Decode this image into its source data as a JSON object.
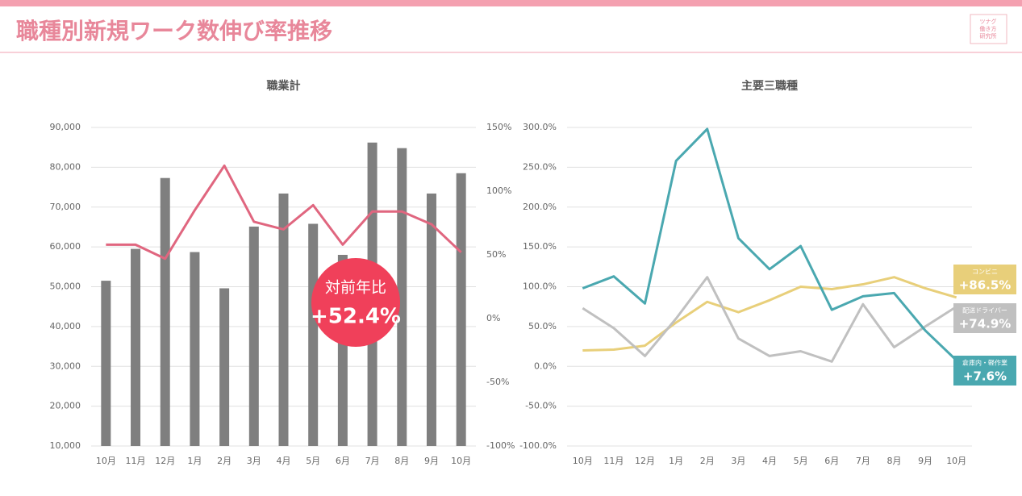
{
  "header": {
    "title": "職種別新規ワーク数伸び率推移",
    "logo": [
      "ツナグ",
      "働き方",
      "研究所"
    ]
  },
  "chart_data": [
    {
      "type": "bar",
      "title": "職業計",
      "categories": [
        "10月",
        "11月",
        "12月",
        "1月",
        "2月",
        "3月",
        "4月",
        "5月",
        "6月",
        "7月",
        "8月",
        "9月",
        "10月"
      ],
      "ylim": [
        10000,
        90000
      ],
      "yticks": [
        {
          "value": 10000,
          "label": "10,000"
        },
        {
          "value": 20000,
          "label": "20,000"
        },
        {
          "value": 30000,
          "label": "30,000"
        },
        {
          "value": 40000,
          "label": "40,000"
        },
        {
          "value": 50000,
          "label": "50,000"
        },
        {
          "value": 60000,
          "label": "60,000"
        },
        {
          "value": 70000,
          "label": "70,000"
        },
        {
          "value": 80000,
          "label": "80,000"
        },
        {
          "value": 90000,
          "label": "90,000"
        }
      ],
      "y2lim": [
        -100,
        150
      ],
      "y2ticks": [
        {
          "value": -100,
          "label": "-100%"
        },
        {
          "value": -50,
          "label": "-50%"
        },
        {
          "value": 0,
          "label": "0%"
        },
        {
          "value": 50,
          "label": "50%"
        },
        {
          "value": 100,
          "label": "100%"
        },
        {
          "value": 150,
          "label": "150%"
        }
      ],
      "grid": true,
      "series": [
        {
          "type": "bar",
          "color": "#7f7f7f",
          "values": [
            51500,
            59500,
            77300,
            58700,
            49600,
            65100,
            73400,
            65800,
            58000,
            86200,
            84800,
            73400,
            78500
          ]
        },
        {
          "type": "line",
          "axis": "y2",
          "color": "#e0667f",
          "values": [
            58,
            58,
            47,
            85,
            120,
            76,
            70,
            89,
            58,
            84,
            84,
            74,
            52
          ]
        }
      ],
      "annotation": {
        "label": "対前年比",
        "value": "+52.4%",
        "color": "#f0405a"
      }
    },
    {
      "type": "line",
      "title": "主要三職種",
      "categories": [
        "10月",
        "11月",
        "12月",
        "1月",
        "2月",
        "3月",
        "4月",
        "5月",
        "6月",
        "7月",
        "8月",
        "9月",
        "10月"
      ],
      "ylim": [
        -100,
        300
      ],
      "yticks": [
        {
          "value": -100,
          "label": "-100.0%"
        },
        {
          "value": -50,
          "label": "-50.0%"
        },
        {
          "value": 0,
          "label": "0.0%"
        },
        {
          "value": 50,
          "label": "50.0%"
        },
        {
          "value": 100,
          "label": "100.0%"
        },
        {
          "value": 150,
          "label": "150.0%"
        },
        {
          "value": 200,
          "label": "200.0%"
        },
        {
          "value": 250,
          "label": "250.0%"
        },
        {
          "value": 300,
          "label": "300.0%"
        }
      ],
      "grid": true,
      "series": [
        {
          "name": "コンビニ",
          "color": "#e8cf7a",
          "values": [
            20,
            21,
            26,
            55,
            81,
            68,
            83,
            100,
            97,
            103,
            112,
            98,
            86.5
          ],
          "value_labels": [
            null,
            null,
            null,
            null,
            null,
            null,
            null,
            null,
            null,
            null,
            null,
            null,
            "+86.5%"
          ]
        },
        {
          "name": "配送ドライバー",
          "color": "#c0c0c0",
          "values": [
            73,
            48,
            13,
            60,
            112,
            35,
            13,
            19,
            6,
            78,
            24,
            50,
            74.9
          ],
          "value_labels": [
            null,
            null,
            null,
            null,
            null,
            null,
            null,
            null,
            null,
            null,
            null,
            null,
            "+74.9%"
          ]
        },
        {
          "name": "倉庫内・軽作業",
          "color": "#4aa8b0",
          "values": [
            98,
            113,
            79,
            258,
            298,
            161,
            122,
            151,
            71,
            88,
            92,
            45,
            7.6
          ],
          "value_labels": [
            null,
            null,
            null,
            null,
            null,
            null,
            null,
            null,
            null,
            null,
            null,
            null,
            "+7.6%"
          ]
        }
      ]
    }
  ]
}
